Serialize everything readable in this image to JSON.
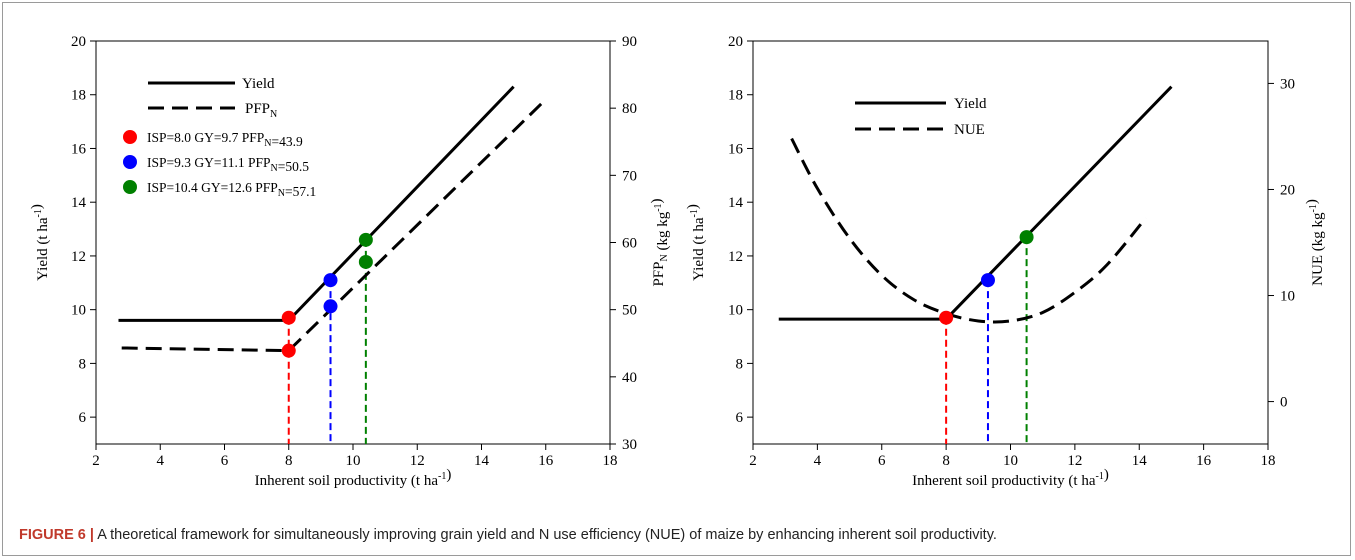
{
  "caption": {
    "label": "FIGURE 6 |",
    "text": "A theoretical framework for simultaneously improving grain yield and N use efficiency (NUE) of maize by enhancing inherent soil productivity."
  },
  "colors": {
    "red": "#ff0000",
    "blue": "#0000ff",
    "green": "#008000",
    "line": "#000000"
  },
  "chart_data": [
    {
      "type": "line",
      "xlabel": "Inherent soil productivity (t ha-1)",
      "ylabel": "Yield (t ha-1)",
      "y2label": "PFPN (kg kg-1)",
      "xlim": [
        2,
        18
      ],
      "ylim": [
        5,
        20
      ],
      "y2lim": [
        30,
        90
      ],
      "xticks": [
        2,
        4,
        6,
        8,
        10,
        12,
        14,
        16,
        18
      ],
      "yticks": [
        6,
        8,
        10,
        12,
        14,
        16,
        18,
        20
      ],
      "y2ticks": [
        30,
        40,
        50,
        60,
        70,
        80,
        90
      ],
      "legend_position": "top-left",
      "series": [
        {
          "name": "Yield",
          "axis": "left",
          "style": "solid",
          "x": [
            2.7,
            8.0,
            15.0
          ],
          "y": [
            9.6,
            9.6,
            18.3
          ]
        },
        {
          "name": "PFPN",
          "axis": "right",
          "style": "dashed",
          "x": [
            2.8,
            8.0,
            16.0
          ],
          "y": [
            44.3,
            43.9,
            81.3
          ]
        }
      ],
      "points": [
        {
          "color": "red",
          "label": "ISP=8.0  GY=9.7 PFPN=43.9",
          "isp": 8.0,
          "gy": 9.7,
          "pfpn": 43.9
        },
        {
          "color": "blue",
          "label": "ISP=9.3  GY=11.1 PFPN=50.5",
          "isp": 9.3,
          "gy": 11.1,
          "pfpn": 50.5
        },
        {
          "color": "green",
          "label": "ISP=10.4 GY=12.6 PFPN=57.1",
          "isp": 10.4,
          "gy": 12.6,
          "pfpn": 57.1
        }
      ]
    },
    {
      "type": "line",
      "xlabel": "Inherent soil productivity (t ha-1)",
      "ylabel": "Yield (t ha-1)",
      "y2label": "NUE (kg kg-1)",
      "xlim": [
        2,
        18
      ],
      "ylim": [
        5,
        20
      ],
      "y2lim": [
        -4,
        34
      ],
      "xticks": [
        2,
        4,
        6,
        8,
        10,
        12,
        14,
        16,
        18
      ],
      "yticks": [
        6,
        8,
        10,
        12,
        14,
        16,
        18,
        20
      ],
      "y2ticks": [
        0,
        10,
        20,
        30
      ],
      "legend_position": "top-left",
      "series": [
        {
          "name": "Yield",
          "axis": "left",
          "style": "solid",
          "x": [
            2.8,
            8.0,
            15.0
          ],
          "y": [
            9.65,
            9.65,
            18.3
          ]
        },
        {
          "name": "NUE",
          "axis": "right",
          "style": "dashed",
          "x": [
            3.2,
            4,
            5,
            6,
            7,
            8,
            9,
            10,
            11,
            12,
            13,
            14.2
          ],
          "y": [
            24.8,
            20.1,
            15.4,
            11.9,
            9.6,
            8.3,
            7.6,
            7.6,
            8.4,
            10.3,
            12.9,
            17.3
          ]
        }
      ],
      "points": [
        {
          "color": "red",
          "isp": 8.0,
          "gy": 9.7
        },
        {
          "color": "blue",
          "isp": 9.3,
          "gy": 11.1
        },
        {
          "color": "green",
          "isp": 10.5,
          "gy": 12.7
        }
      ]
    }
  ]
}
